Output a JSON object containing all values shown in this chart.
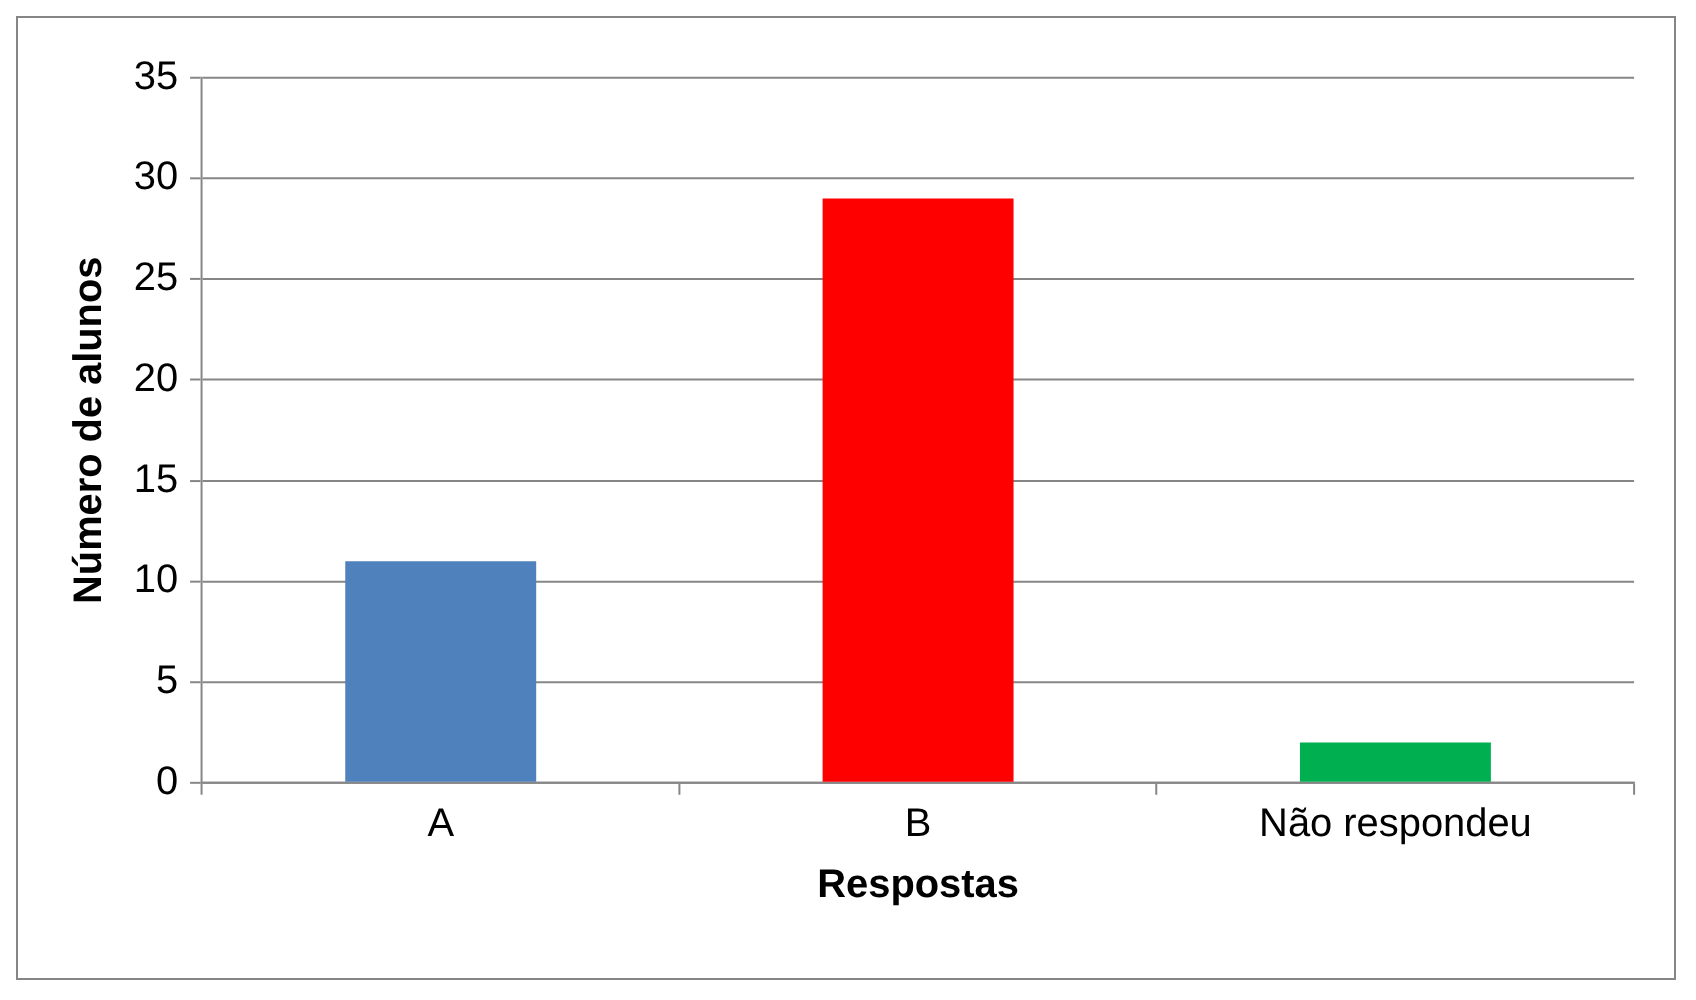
{
  "chart_data": {
    "type": "bar",
    "xlabel": "Respostas",
    "ylabel": "Número de alunos",
    "categories": [
      "A",
      "B",
      "Não respondeu"
    ],
    "values": [
      11,
      29,
      2
    ],
    "colors": [
      "#4f81bd",
      "#ff0000",
      "#00b050"
    ],
    "ylim": [
      0,
      35
    ],
    "yticks": [
      0,
      5,
      10,
      15,
      20,
      25,
      30,
      35
    ],
    "grid": "y",
    "legend": false
  }
}
